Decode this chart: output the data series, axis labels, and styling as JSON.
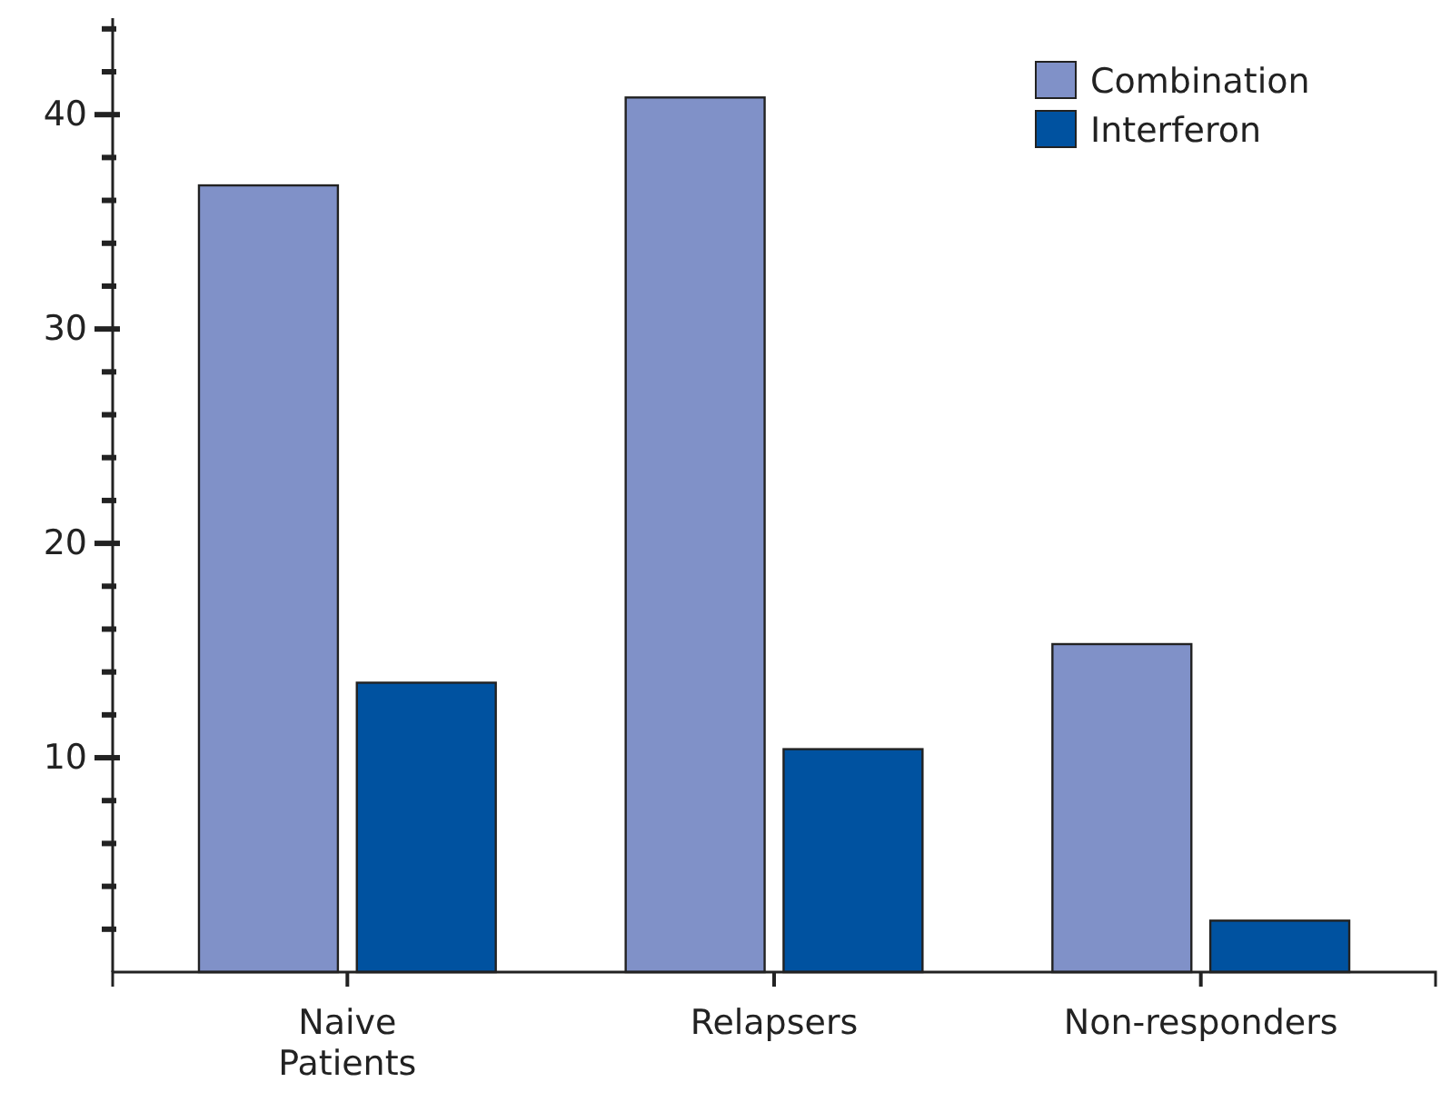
{
  "chart_data": {
    "type": "bar",
    "categories": [
      "Naive Patients",
      "Relapsers",
      "Non-responders"
    ],
    "series": [
      {
        "name": "Combination",
        "color": "#8091c8",
        "values": [
          36.7,
          40.8,
          15.3
        ]
      },
      {
        "name": "Interferon",
        "color": "#0052a0",
        "values": [
          13.5,
          10.4,
          2.4
        ]
      }
    ],
    "ylim": [
      0,
      44.5
    ],
    "yticks": [
      {
        "value": 2,
        "label": null
      },
      {
        "value": 4,
        "label": null
      },
      {
        "value": 6,
        "label": null
      },
      {
        "value": 8,
        "label": null
      },
      10,
      {
        "value": 12,
        "label": null
      },
      {
        "value": 14,
        "label": null
      },
      {
        "value": 16,
        "label": null
      },
      {
        "value": 18,
        "label": null
      },
      20,
      {
        "value": 22,
        "label": null
      },
      {
        "value": 24,
        "label": null
      },
      {
        "value": 26,
        "label": null
      },
      {
        "value": 28,
        "label": null
      },
      30,
      {
        "value": 32,
        "label": null
      },
      {
        "value": 34,
        "label": null
      },
      {
        "value": 36,
        "label": null
      },
      {
        "value": 38,
        "label": null
      },
      40,
      {
        "value": 42,
        "label": null
      },
      {
        "value": 44,
        "label": null
      }
    ],
    "legend": "top right",
    "grid": false
  }
}
